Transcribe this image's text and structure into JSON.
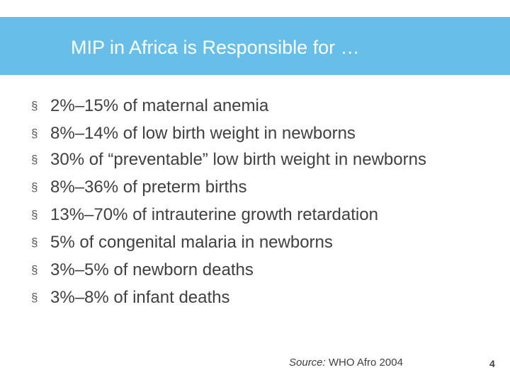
{
  "slide": {
    "title": "MIP in Africa is Responsible for …",
    "bullet_marker": "§",
    "bullets": [
      "2%–15% of maternal anemia",
      "8%–14% of low birth weight in newborns",
      "30% of “preventable” low birth weight in newborns",
      "8%–36% of preterm births",
      "13%–70% of intrauterine growth retardation",
      "5% of congenital malaria in newborns",
      "3%–5% of newborn deaths",
      "3%–8% of infant deaths"
    ],
    "source_label": "Source:",
    "source_text": " WHO Afro 2004",
    "page_number": "4"
  },
  "colors": {
    "title_bar": "#67bfe9",
    "title_text": "#ffffff",
    "body_text": "#404040"
  }
}
